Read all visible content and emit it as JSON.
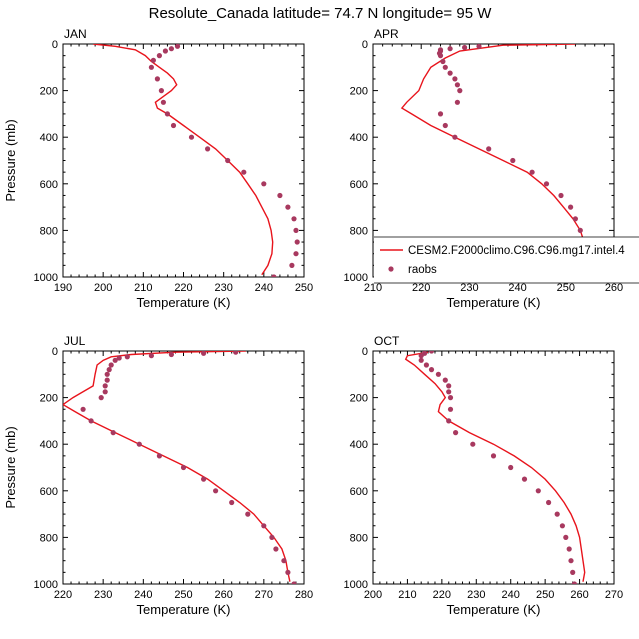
{
  "figure_title": "Resolute_Canada  latitude= 74.7 N longitude= 95 W",
  "colors": {
    "model": "#e8141c",
    "obs": "#a8395f",
    "axis": "#000000"
  },
  "legend": {
    "model_label": "CESM2.F2000climo.C96.C96.mg17.intel.4",
    "obs_label": "raobs"
  },
  "chart_data": [
    {
      "type": "line",
      "title": "JAN",
      "xlabel": "Temperature (K)",
      "ylabel": "Pressure (mb)",
      "xlim": [
        190,
        250
      ],
      "ylim": [
        1000,
        0
      ],
      "xticks": [
        190,
        200,
        210,
        220,
        230,
        240,
        250
      ],
      "yticks": [
        0,
        200,
        400,
        600,
        800,
        1000
      ],
      "series": [
        {
          "name": "model",
          "kind": "line",
          "points": [
            [
              197.5,
              0
            ],
            [
              203,
              10
            ],
            [
              208,
              25
            ],
            [
              210.5,
              50
            ],
            [
              212,
              75
            ],
            [
              214,
              100
            ],
            [
              216,
              125
            ],
            [
              217.5,
              150
            ],
            [
              218.3,
              175
            ],
            [
              217,
              200
            ],
            [
              215,
              225
            ],
            [
              213,
              250
            ],
            [
              213.5,
              275
            ],
            [
              216,
              300
            ],
            [
              220,
              350
            ],
            [
              224,
              400
            ],
            [
              228,
              450
            ],
            [
              231,
              500
            ],
            [
              234,
              550
            ],
            [
              236,
              600
            ],
            [
              238,
              650
            ],
            [
              239.5,
              700
            ],
            [
              241,
              750
            ],
            [
              241.8,
              800
            ],
            [
              242.2,
              850
            ],
            [
              242,
              900
            ],
            [
              241,
              950
            ],
            [
              239.5,
              990
            ]
          ]
        },
        {
          "name": "raobs",
          "kind": "scatter",
          "points": [
            [
              218.5,
              10
            ],
            [
              217,
              20
            ],
            [
              215.5,
              30
            ],
            [
              214,
              50
            ],
            [
              212.5,
              70
            ],
            [
              212,
              100
            ],
            [
              213.5,
              150
            ],
            [
              214.5,
              200
            ],
            [
              215,
              250
            ],
            [
              216,
              300
            ],
            [
              217.5,
              350
            ],
            [
              222,
              400
            ],
            [
              226,
              450
            ],
            [
              231,
              500
            ],
            [
              235,
              550
            ],
            [
              240,
              600
            ],
            [
              244,
              650
            ],
            [
              246,
              700
            ],
            [
              247.5,
              750
            ],
            [
              248,
              800
            ],
            [
              248.3,
              850
            ],
            [
              248,
              900
            ],
            [
              247,
              950
            ],
            [
              242.5,
              1000
            ]
          ]
        }
      ]
    },
    {
      "type": "line",
      "title": "APR",
      "xlabel": "Temperature (K)",
      "ylabel": "",
      "xlim": [
        210,
        260
      ],
      "ylim": [
        1000,
        0
      ],
      "xticks": [
        210,
        220,
        230,
        240,
        250,
        260
      ],
      "yticks": [
        0,
        200,
        400,
        600,
        800,
        1000
      ],
      "series": [
        {
          "name": "model",
          "kind": "line",
          "points": [
            [
              252,
              0
            ],
            [
              237,
              5
            ],
            [
              228,
              30
            ],
            [
              225,
              60
            ],
            [
              222,
              100
            ],
            [
              220.5,
              150
            ],
            [
              219.5,
              200
            ],
            [
              217,
              250
            ],
            [
              216,
              275
            ],
            [
              218,
              300
            ],
            [
              222,
              350
            ],
            [
              227,
              400
            ],
            [
              232,
              450
            ],
            [
              237,
              500
            ],
            [
              242,
              550
            ],
            [
              245,
              600
            ],
            [
              247.5,
              650
            ],
            [
              249.5,
              700
            ],
            [
              251.5,
              750
            ],
            [
              253,
              800
            ],
            [
              253.8,
              850
            ],
            [
              253.5,
              900
            ],
            [
              252,
              950
            ],
            [
              248,
              1000
            ]
          ]
        },
        {
          "name": "raobs",
          "kind": "scatter",
          "points": [
            [
              232,
              10
            ],
            [
              229,
              15
            ],
            [
              226,
              20
            ],
            [
              224,
              25
            ],
            [
              224,
              30
            ],
            [
              223.8,
              40
            ],
            [
              224,
              50
            ],
            [
              224.5,
              75
            ],
            [
              225,
              100
            ],
            [
              226,
              125
            ],
            [
              227,
              150
            ],
            [
              227.5,
              175
            ],
            [
              228,
              200
            ],
            [
              227.5,
              250
            ],
            [
              224,
              300
            ],
            [
              225,
              350
            ],
            [
              227,
              400
            ],
            [
              234,
              450
            ],
            [
              239,
              500
            ],
            [
              243,
              550
            ],
            [
              246,
              600
            ],
            [
              249,
              650
            ],
            [
              251,
              700
            ],
            [
              252,
              750
            ],
            [
              253,
              800
            ],
            [
              253.5,
              850
            ],
            [
              254,
              900
            ],
            [
              253,
              950
            ],
            [
              249.5,
              1000
            ]
          ]
        }
      ]
    },
    {
      "type": "line",
      "title": "JUL",
      "xlabel": "Temperature (K)",
      "ylabel": "Pressure (mb)",
      "xlim": [
        220,
        280
      ],
      "ylim": [
        1000,
        0
      ],
      "xticks": [
        220,
        230,
        240,
        250,
        260,
        270,
        280
      ],
      "yticks": [
        0,
        200,
        400,
        600,
        800,
        1000
      ],
      "series": [
        {
          "name": "model",
          "kind": "line",
          "points": [
            [
              265.5,
              0
            ],
            [
              248,
              5
            ],
            [
              237,
              15
            ],
            [
              232,
              25
            ],
            [
              230,
              40
            ],
            [
              228.5,
              60
            ],
            [
              228,
              100
            ],
            [
              227.5,
              150
            ],
            [
              224.5,
              180
            ],
            [
              222.5,
              200
            ],
            [
              220,
              230
            ],
            [
              223,
              260
            ],
            [
              227,
              300
            ],
            [
              233,
              350
            ],
            [
              239,
              400
            ],
            [
              245,
              450
            ],
            [
              251,
              500
            ],
            [
              256,
              550
            ],
            [
              260,
              600
            ],
            [
              264,
              650
            ],
            [
              267.5,
              700
            ],
            [
              270,
              750
            ],
            [
              272.5,
              800
            ],
            [
              274.5,
              850
            ],
            [
              275.5,
              900
            ],
            [
              276,
              950
            ],
            [
              276.5,
              990
            ]
          ]
        },
        {
          "name": "raobs",
          "kind": "scatter",
          "points": [
            [
              263,
              5
            ],
            [
              255,
              10
            ],
            [
              247,
              15
            ],
            [
              242,
              20
            ],
            [
              236,
              25
            ],
            [
              234,
              30
            ],
            [
              233,
              40
            ],
            [
              232,
              60
            ],
            [
              231.5,
              80
            ],
            [
              231,
              100
            ],
            [
              231,
              125
            ],
            [
              230.5,
              150
            ],
            [
              230.5,
              175
            ],
            [
              229.5,
              200
            ],
            [
              225,
              250
            ],
            [
              227,
              300
            ],
            [
              232.5,
              350
            ],
            [
              239,
              400
            ],
            [
              244,
              450
            ],
            [
              250,
              500
            ],
            [
              255,
              550
            ],
            [
              258,
              600
            ],
            [
              262,
              650
            ],
            [
              266,
              700
            ],
            [
              270,
              750
            ],
            [
              272,
              800
            ],
            [
              273,
              850
            ],
            [
              275,
              900
            ],
            [
              276,
              950
            ],
            [
              277.5,
              1000
            ]
          ]
        }
      ]
    },
    {
      "type": "line",
      "title": "OCT",
      "xlabel": "Temperature (K)",
      "ylabel": "",
      "xlim": [
        200,
        270
      ],
      "ylim": [
        1000,
        0
      ],
      "xticks": [
        200,
        210,
        220,
        230,
        240,
        250,
        260,
        270
      ],
      "yticks": [
        0,
        200,
        400,
        600,
        800,
        1000
      ],
      "series": [
        {
          "name": "model",
          "kind": "line",
          "points": [
            [
              216,
              5
            ],
            [
              210,
              20
            ],
            [
              209.5,
              35
            ],
            [
              212,
              60
            ],
            [
              215,
              100
            ],
            [
              218,
              140
            ],
            [
              220,
              175
            ],
            [
              221,
              200
            ],
            [
              219.5,
              230
            ],
            [
              219,
              260
            ],
            [
              222,
              300
            ],
            [
              228,
              350
            ],
            [
              235,
              400
            ],
            [
              241,
              450
            ],
            [
              246,
              500
            ],
            [
              250,
              550
            ],
            [
              253,
              600
            ],
            [
              255.5,
              650
            ],
            [
              257.5,
              700
            ],
            [
              259,
              750
            ],
            [
              260,
              800
            ],
            [
              260.5,
              850
            ],
            [
              261,
              900
            ],
            [
              261.5,
              950
            ],
            [
              261,
              990
            ]
          ]
        },
        {
          "name": "raobs",
          "kind": "scatter",
          "points": [
            [
              217,
              0
            ],
            [
              215,
              10
            ],
            [
              214,
              20
            ],
            [
              214,
              40
            ],
            [
              215.5,
              60
            ],
            [
              217,
              80
            ],
            [
              219,
              100
            ],
            [
              221,
              125
            ],
            [
              222,
              150
            ],
            [
              222,
              175
            ],
            [
              222.5,
              200
            ],
            [
              222.5,
              250
            ],
            [
              222,
              300
            ],
            [
              224,
              350
            ],
            [
              229,
              400
            ],
            [
              235,
              450
            ],
            [
              240,
              500
            ],
            [
              244,
              550
            ],
            [
              248,
              600
            ],
            [
              251,
              650
            ],
            [
              253.5,
              700
            ],
            [
              255,
              750
            ],
            [
              256,
              800
            ],
            [
              257,
              850
            ],
            [
              257.5,
              900
            ],
            [
              258,
              950
            ],
            [
              258.5,
              1000
            ]
          ]
        }
      ]
    }
  ]
}
